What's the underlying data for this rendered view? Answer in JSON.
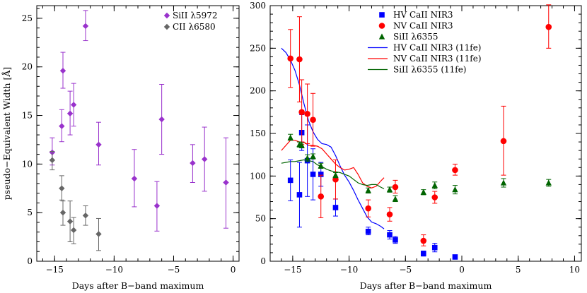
{
  "chart_data": [
    {
      "type": "scatter",
      "xlabel": "Days after B−band maximum",
      "ylabel": "pseudo−Equivalent Width [Å]",
      "xlim": [
        -16.5,
        0.5
      ],
      "ylim": [
        0,
        26.3
      ],
      "xticks": [
        -15,
        -10,
        -5,
        0
      ],
      "yticks": [
        0,
        5,
        10,
        15,
        20,
        25
      ],
      "tick_labels_x": [
        "−15",
        "−10",
        "−5",
        "0"
      ],
      "tick_labels_y": [
        "0",
        "5",
        "10",
        "15",
        "20",
        "25"
      ],
      "legend_position": "top-right",
      "series": [
        {
          "name": "SiII λ5972",
          "color": "#9932CC",
          "marker": "diamond",
          "points": [
            {
              "x": -15.2,
              "y": 11.2,
              "lo": 9.9,
              "hi": 12.7
            },
            {
              "x": -14.4,
              "y": 13.9,
              "lo": 12.3,
              "hi": 15.6
            },
            {
              "x": -14.3,
              "y": 19.6,
              "lo": 17.8,
              "hi": 21.5
            },
            {
              "x": -13.7,
              "y": 15.2,
              "lo": 13.0,
              "hi": 17.5
            },
            {
              "x": -13.4,
              "y": 16.1,
              "lo": 13.9,
              "hi": 18.3
            },
            {
              "x": -12.4,
              "y": 24.2,
              "lo": 22.7,
              "hi": 25.8
            },
            {
              "x": -11.3,
              "y": 12.0,
              "lo": 9.9,
              "hi": 14.3
            },
            {
              "x": -8.3,
              "y": 8.5,
              "lo": 5.6,
              "hi": 11.5
            },
            {
              "x": -6.4,
              "y": 5.7,
              "lo": 3.1,
              "hi": 8.2
            },
            {
              "x": -6.0,
              "y": 14.6,
              "lo": 11.0,
              "hi": 18.2
            },
            {
              "x": -3.4,
              "y": 10.1,
              "lo": 8.1,
              "hi": 12.0
            },
            {
              "x": -2.4,
              "y": 10.5,
              "lo": 7.2,
              "hi": 13.8
            },
            {
              "x": -0.6,
              "y": 8.1,
              "lo": 3.4,
              "hi": 12.7
            }
          ]
        },
        {
          "name": "CII λ6580",
          "color": "#666666",
          "marker": "diamond",
          "points": [
            {
              "x": -15.2,
              "y": 10.4,
              "lo": 9.4,
              "hi": 11.3
            },
            {
              "x": -14.4,
              "y": 7.5,
              "lo": 6.3,
              "hi": 8.8
            },
            {
              "x": -14.3,
              "y": 5.0,
              "lo": 3.7,
              "hi": 6.2
            },
            {
              "x": -13.7,
              "y": 4.1,
              "lo": 2.0,
              "hi": 6.2
            },
            {
              "x": -13.4,
              "y": 3.2,
              "lo": 1.8,
              "hi": 4.5
            },
            {
              "x": -12.4,
              "y": 4.7,
              "lo": 3.7,
              "hi": 5.7
            },
            {
              "x": -11.3,
              "y": 2.8,
              "lo": 1.1,
              "hi": 4.4
            }
          ]
        }
      ]
    },
    {
      "type": "scatter",
      "xlabel": "Days after B−band maximum",
      "ylabel": "",
      "xlim": [
        -17,
        10.6
      ],
      "ylim": [
        0,
        300
      ],
      "xticks": [
        -15,
        -10,
        -5,
        0,
        5,
        10
      ],
      "yticks": [
        0,
        50,
        100,
        150,
        200,
        250,
        300
      ],
      "tick_labels_x": [
        "−15",
        "−10",
        "−5",
        "0",
        "5",
        "10"
      ],
      "tick_labels_y": [
        "0",
        "50",
        "100",
        "150",
        "200",
        "250",
        "300"
      ],
      "legend_position": "top-center",
      "series": [
        {
          "name": "HV CaII NIR3",
          "color": "#0000FF",
          "marker": "square",
          "points": [
            {
              "x": -15.2,
              "y": 95,
              "lo": 71,
              "hi": 119
            },
            {
              "x": -14.4,
              "y": 78,
              "lo": 40,
              "hi": 116
            },
            {
              "x": -14.2,
              "y": 151,
              "lo": 130,
              "hi": 172
            },
            {
              "x": -13.7,
              "y": 118,
              "lo": 76,
              "hi": 160
            },
            {
              "x": -13.2,
              "y": 102,
              "lo": 72,
              "hi": 132
            },
            {
              "x": -12.5,
              "y": 102,
              "lo": 88,
              "hi": 116
            },
            {
              "x": -11.2,
              "y": 63,
              "lo": 53,
              "hi": 73
            },
            {
              "x": -8.3,
              "y": 35,
              "lo": 31,
              "hi": 40
            },
            {
              "x": -6.4,
              "y": 31,
              "lo": 26,
              "hi": 36
            },
            {
              "x": -5.9,
              "y": 25,
              "lo": 21,
              "hi": 29
            },
            {
              "x": -3.4,
              "y": 9,
              "lo": 6,
              "hi": 12
            },
            {
              "x": -2.4,
              "y": 16,
              "lo": 11,
              "hi": 21
            },
            {
              "x": -0.6,
              "y": 5,
              "lo": 3,
              "hi": 7
            }
          ]
        },
        {
          "name": "NV CaII NIR3",
          "color": "#FF0000",
          "marker": "circle",
          "points": [
            {
              "x": -15.2,
              "y": 238,
              "lo": 204,
              "hi": 272
            },
            {
              "x": -14.4,
              "y": 237,
              "lo": 187,
              "hi": 287
            },
            {
              "x": -14.2,
              "y": 175,
              "lo": 137,
              "hi": 213
            },
            {
              "x": -13.7,
              "y": 173,
              "lo": 138,
              "hi": 208
            },
            {
              "x": -13.2,
              "y": 166,
              "lo": 135,
              "hi": 197
            },
            {
              "x": -12.5,
              "y": 76,
              "lo": 51,
              "hi": 101
            },
            {
              "x": -11.2,
              "y": 96,
              "lo": 73,
              "hi": 119
            },
            {
              "x": -8.3,
              "y": 62,
              "lo": 52,
              "hi": 72
            },
            {
              "x": -6.4,
              "y": 55,
              "lo": 47,
              "hi": 63
            },
            {
              "x": -5.9,
              "y": 87,
              "lo": 80,
              "hi": 95
            },
            {
              "x": -3.4,
              "y": 24,
              "lo": 18,
              "hi": 31
            },
            {
              "x": -2.4,
              "y": 75,
              "lo": 68,
              "hi": 82
            },
            {
              "x": -0.6,
              "y": 107,
              "lo": 101,
              "hi": 114
            },
            {
              "x": 3.7,
              "y": 141,
              "lo": 101,
              "hi": 182
            },
            {
              "x": 7.7,
              "y": 275,
              "lo": 250,
              "hi": 301
            }
          ]
        },
        {
          "name": "SiII λ6355",
          "color": "#006400",
          "marker": "triangle",
          "points": [
            {
              "x": -15.2,
              "y": 145,
              "lo": 142,
              "hi": 149
            },
            {
              "x": -14.4,
              "y": 137,
              "lo": 134,
              "hi": 140
            },
            {
              "x": -14.2,
              "y": 136,
              "lo": 133,
              "hi": 139
            },
            {
              "x": -13.7,
              "y": 121,
              "lo": 117,
              "hi": 125
            },
            {
              "x": -13.2,
              "y": 123,
              "lo": 120,
              "hi": 126
            },
            {
              "x": -12.5,
              "y": 112,
              "lo": 109,
              "hi": 115
            },
            {
              "x": -11.2,
              "y": 101,
              "lo": 98,
              "hi": 104
            },
            {
              "x": -8.3,
              "y": 83,
              "lo": 80,
              "hi": 86
            },
            {
              "x": -6.4,
              "y": 84,
              "lo": 81,
              "hi": 87
            },
            {
              "x": -5.9,
              "y": 73,
              "lo": 70,
              "hi": 77
            },
            {
              "x": -3.4,
              "y": 81,
              "lo": 78,
              "hi": 84
            },
            {
              "x": -2.4,
              "y": 89,
              "lo": 85,
              "hi": 93
            },
            {
              "x": -0.6,
              "y": 84,
              "lo": 79,
              "hi": 89
            },
            {
              "x": 3.7,
              "y": 92,
              "lo": 87,
              "hi": 97
            },
            {
              "x": 7.7,
              "y": 92,
              "lo": 88,
              "hi": 96
            }
          ]
        },
        {
          "name": "HV CaII NIR3 (11fe)",
          "color": "#0000FF",
          "line": true,
          "x": [
            -16,
            -15.6,
            -15.2,
            -14.8,
            -14.4,
            -14.0,
            -13.6,
            -13.2,
            -12.8,
            -12.4,
            -12.0,
            -11.6,
            -11.2,
            -10.8,
            -10.4,
            -10.0,
            -9.6,
            -9.2,
            -8.8,
            -8.4,
            -8.0,
            -7.6,
            -7.2,
            -6.9
          ],
          "y": [
            250,
            245,
            236,
            224,
            207,
            185,
            165,
            152,
            143,
            138,
            137,
            134,
            124,
            112,
            101,
            93,
            83,
            72,
            62,
            52,
            46,
            44,
            41,
            38
          ]
        },
        {
          "name": "NV CaII NIR3 (11fe)",
          "color": "#FF0000",
          "line": true,
          "x": [
            -16,
            -15.6,
            -15.2,
            -14.8,
            -14.4,
            -14.0,
            -13.6,
            -13.2,
            -12.8,
            -12.4,
            -12.0,
            -11.6,
            -11.2,
            -10.8,
            -10.4,
            -10.0,
            -9.6,
            -9.2,
            -8.8,
            -8.4,
            -8.0,
            -7.6,
            -7.2,
            -6.9
          ],
          "y": [
            130,
            136,
            142,
            142,
            140,
            140,
            136,
            136,
            135,
            132,
            126,
            120,
            114,
            110,
            107,
            108,
            110,
            102,
            92,
            88,
            86,
            88,
            94,
            98
          ]
        },
        {
          "name": "SiII λ6355 (11fe)",
          "color": "#006400",
          "line": true,
          "x": [
            -16,
            -15.6,
            -15.2,
            -14.8,
            -14.4,
            -14.0,
            -13.6,
            -13.2,
            -12.8,
            -12.4,
            -12.0,
            -11.6,
            -11.2,
            -10.8,
            -10.4,
            -10.0,
            -9.6,
            -9.2,
            -8.8,
            -8.4,
            -8.0,
            -7.6,
            -7.2,
            -6.9
          ],
          "y": [
            115,
            116,
            117,
            117,
            118,
            119,
            118,
            117,
            113,
            111,
            108,
            106,
            105,
            104,
            102,
            100,
            96,
            92,
            90,
            89,
            90,
            90,
            87,
            85
          ]
        }
      ]
    }
  ]
}
